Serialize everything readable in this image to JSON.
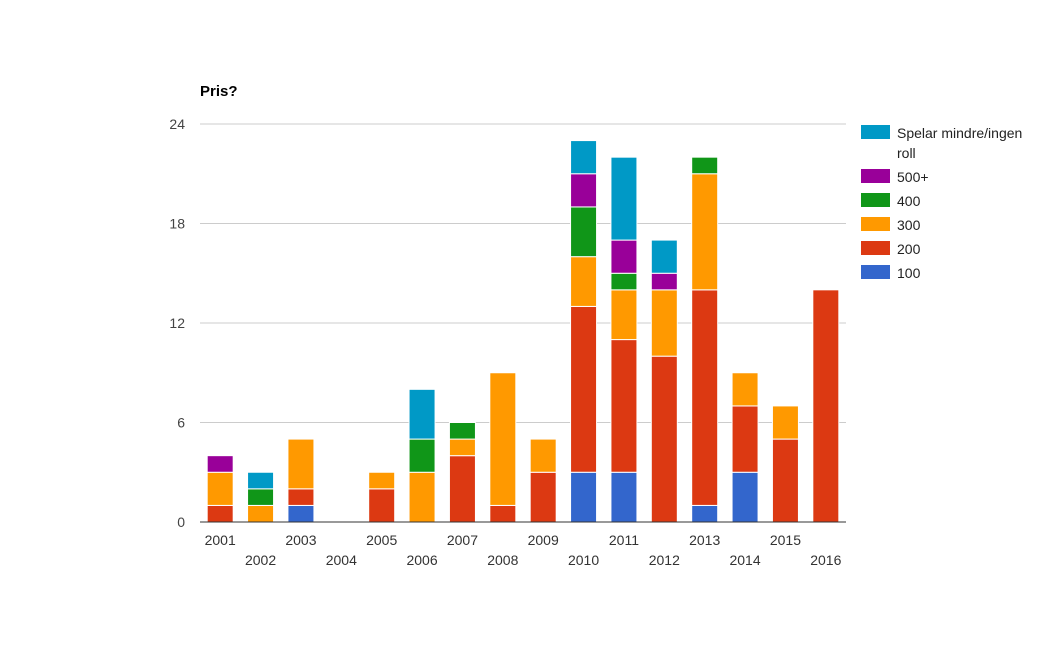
{
  "chart_data": {
    "type": "bar",
    "stacked": true,
    "title": "Pris?",
    "xlabel": "",
    "ylabel": "",
    "ylim": [
      0,
      24
    ],
    "yticks": [
      0,
      6,
      12,
      18,
      24
    ],
    "grid": true,
    "legend_position": "right",
    "categories": [
      "2001",
      "2002",
      "2003",
      "2004",
      "2005",
      "2006",
      "2007",
      "2008",
      "2009",
      "2010",
      "2011",
      "2012",
      "2013",
      "2014",
      "2015",
      "2016"
    ],
    "series": [
      {
        "name": "100",
        "color": "#3366cc",
        "values": [
          0,
          0,
          1,
          0,
          0,
          0,
          0,
          0,
          0,
          3,
          3,
          0,
          1,
          3,
          0,
          0
        ]
      },
      {
        "name": "200",
        "color": "#dc3912",
        "values": [
          1,
          0,
          1,
          0,
          2,
          0,
          4,
          1,
          3,
          10,
          8,
          10,
          13,
          4,
          5,
          14
        ]
      },
      {
        "name": "300",
        "color": "#ff9900",
        "values": [
          2,
          1,
          3,
          0,
          1,
          3,
          1,
          8,
          2,
          3,
          3,
          4,
          7,
          2,
          2,
          0
        ]
      },
      {
        "name": "400",
        "color": "#109618",
        "values": [
          0,
          1,
          0,
          0,
          0,
          2,
          1,
          0,
          0,
          3,
          1,
          0,
          1,
          0,
          0,
          0
        ]
      },
      {
        "name": "500+",
        "color": "#990099",
        "values": [
          1,
          0,
          0,
          0,
          0,
          0,
          0,
          0,
          0,
          2,
          2,
          1,
          0,
          0,
          0,
          0
        ]
      },
      {
        "name": "Spelar mindre/ingen roll",
        "color": "#0099c6",
        "values": [
          0,
          1,
          0,
          0,
          0,
          3,
          0,
          0,
          0,
          2,
          5,
          2,
          0,
          0,
          0,
          0
        ]
      }
    ]
  }
}
